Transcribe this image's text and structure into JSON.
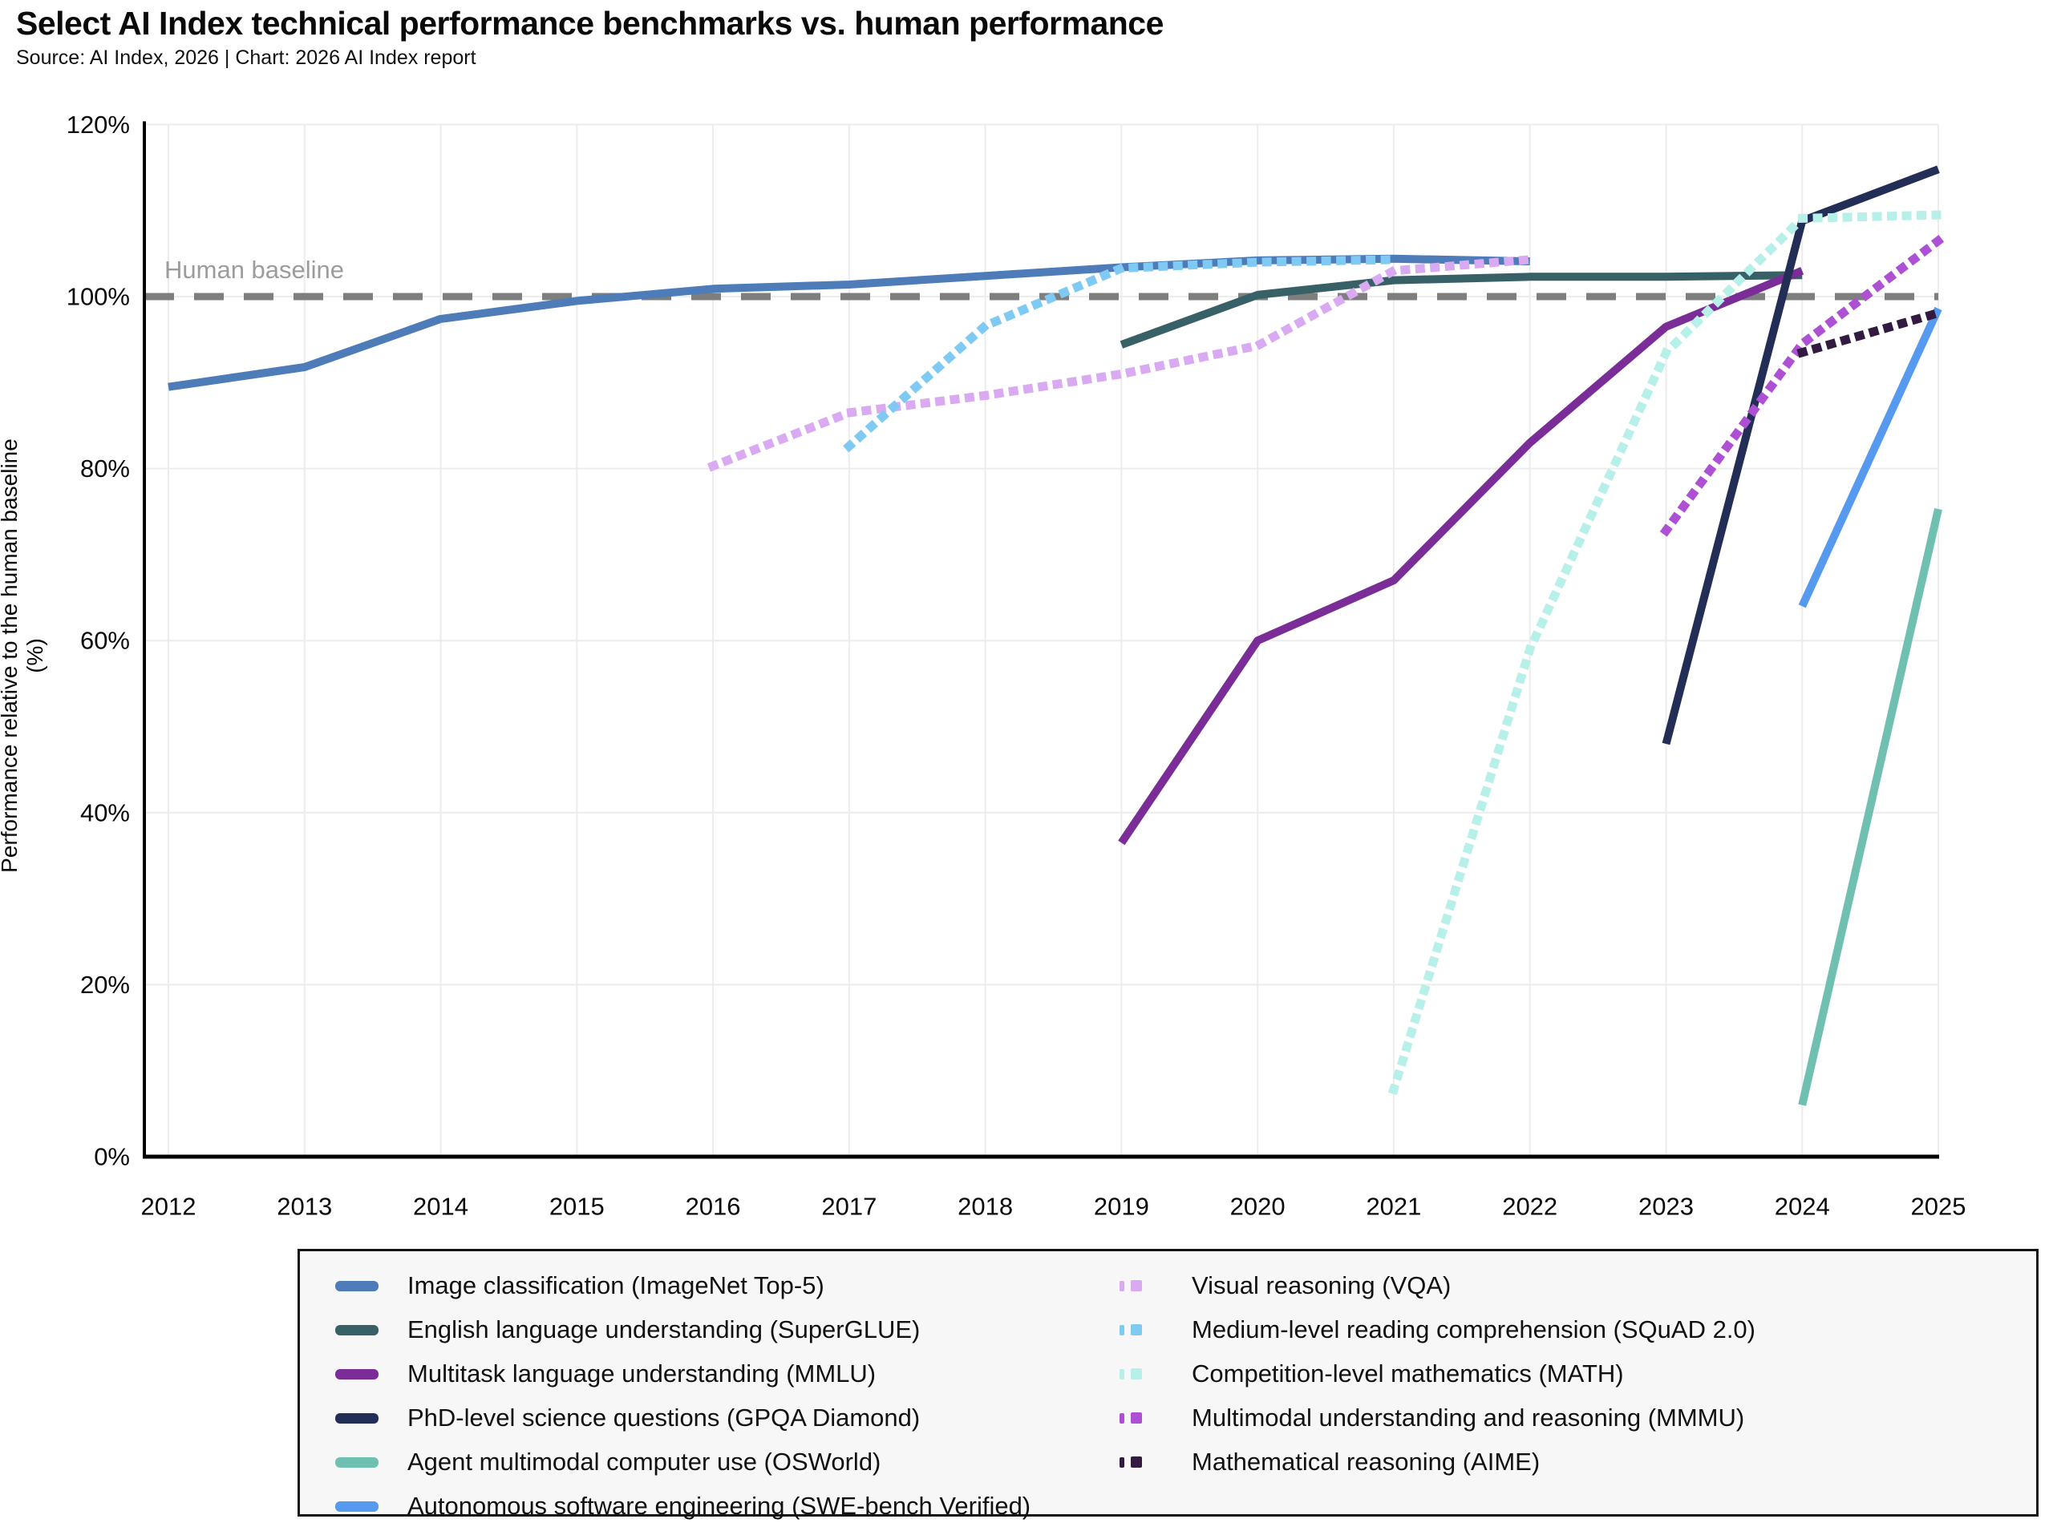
{
  "header": {
    "title": "Select AI Index technical performance benchmarks vs. human performance",
    "subtitle": "Source: AI Index, 2026 | Chart: 2026 AI Index report"
  },
  "chart_data": {
    "type": "line",
    "title": "Select AI Index technical performance benchmarks vs. human performance",
    "xlabel": "",
    "ylabel": "Performance relative to the human baseline (%)",
    "xlim": [
      2012,
      2025
    ],
    "ylim": [
      0,
      120
    ],
    "x_ticks": [
      2012,
      2013,
      2014,
      2015,
      2016,
      2017,
      2018,
      2019,
      2020,
      2021,
      2022,
      2023,
      2024,
      2025
    ],
    "y_ticks": [
      0,
      20,
      40,
      60,
      80,
      100,
      120
    ],
    "y_tick_suffix": "%",
    "grid": true,
    "legend_position": "bottom",
    "colors": {
      "grid": "#ececec",
      "axis": "#000000",
      "baseline": "#7e7e7e",
      "baseline_label": "#9c9c9c",
      "tick_label": "#0a0a0a"
    },
    "baseline": {
      "value": 100,
      "label": "Human baseline"
    },
    "series": [
      {
        "id": "imagenet",
        "name": "Image classification (ImageNet Top-5)",
        "color": "#4d7cb9",
        "style": "solid",
        "legend_column": 1,
        "points": [
          [
            2012,
            89.5
          ],
          [
            2013,
            91.8
          ],
          [
            2014,
            97.4
          ],
          [
            2015,
            99.5
          ],
          [
            2016,
            100.9
          ],
          [
            2017,
            101.4
          ],
          [
            2018,
            102.4
          ],
          [
            2019,
            103.4
          ],
          [
            2020,
            104.2
          ],
          [
            2021,
            104.4
          ],
          [
            2022,
            104.1
          ]
        ]
      },
      {
        "id": "superglue",
        "name": "English language understanding (SuperGLUE)",
        "color": "#376067",
        "style": "solid",
        "legend_column": 1,
        "points": [
          [
            2019,
            94.4
          ],
          [
            2020,
            100.2
          ],
          [
            2021,
            101.9
          ],
          [
            2022,
            102.3
          ],
          [
            2023,
            102.3
          ],
          [
            2024,
            102.5
          ]
        ]
      },
      {
        "id": "mmlu",
        "name": "Multitask language understanding (MMLU)",
        "color": "#7b2d97",
        "style": "solid",
        "legend_column": 1,
        "points": [
          [
            2019,
            36.5
          ],
          [
            2020,
            60.0
          ],
          [
            2021,
            67.0
          ],
          [
            2022,
            83.0
          ],
          [
            2023,
            96.5
          ],
          [
            2024,
            103.0
          ]
        ]
      },
      {
        "id": "gpqa",
        "name": "PhD-level science questions (GPQA Diamond)",
        "color": "#222e56",
        "style": "solid",
        "legend_column": 1,
        "points": [
          [
            2023,
            48.0
          ],
          [
            2024,
            108.8
          ],
          [
            2025,
            114.8
          ]
        ]
      },
      {
        "id": "osworld",
        "name": "Agent multimodal computer use (OSWorld)",
        "color": "#6fc0b0",
        "style": "solid",
        "legend_column": 1,
        "points": [
          [
            2024,
            6.0
          ],
          [
            2025,
            75.3
          ]
        ]
      },
      {
        "id": "swebench",
        "name": "Autonomous software engineering (SWE-bench Verified)",
        "color": "#569af0",
        "style": "solid",
        "legend_column": 1,
        "points": [
          [
            2024,
            64.0
          ],
          [
            2025,
            98.6
          ]
        ]
      },
      {
        "id": "vqa",
        "name": "Visual reasoning (VQA)",
        "color": "#d9a9f2",
        "style": "dotted",
        "legend_column": 2,
        "points": [
          [
            2016,
            80.3
          ],
          [
            2017,
            86.5
          ],
          [
            2018,
            88.5
          ],
          [
            2019,
            91.0
          ],
          [
            2020,
            94.3
          ],
          [
            2021,
            103.0
          ],
          [
            2022,
            104.3
          ]
        ]
      },
      {
        "id": "squad",
        "name": "Medium-level reading comprehension (SQuAD 2.0)",
        "color": "#7fcaf3",
        "style": "dotted",
        "legend_column": 2,
        "points": [
          [
            2017,
            82.6
          ],
          [
            2018,
            96.6
          ],
          [
            2019,
            103.3
          ],
          [
            2020,
            104.0
          ],
          [
            2021,
            104.3
          ]
        ]
      },
      {
        "id": "math",
        "name": "Competition-level mathematics (MATH)",
        "color": "#b7efe9",
        "style": "dotted",
        "legend_column": 2,
        "points": [
          [
            2021,
            7.8
          ],
          [
            2022,
            59.0
          ],
          [
            2023,
            93.5
          ],
          [
            2024,
            109.1
          ],
          [
            2025,
            109.5
          ]
        ]
      },
      {
        "id": "mmmu",
        "name": "Multimodal understanding and reasoning (MMMU)",
        "color": "#ae50d3",
        "style": "dotted",
        "legend_column": 2,
        "points": [
          [
            2023,
            72.8
          ],
          [
            2024,
            94.5
          ],
          [
            2025,
            106.5
          ]
        ]
      },
      {
        "id": "aime",
        "name": "Mathematical reasoning (AIME)",
        "color": "#331a40",
        "style": "dotted",
        "legend_column": 2,
        "points": [
          [
            2024,
            93.5
          ],
          [
            2025,
            98.1
          ]
        ]
      }
    ]
  }
}
